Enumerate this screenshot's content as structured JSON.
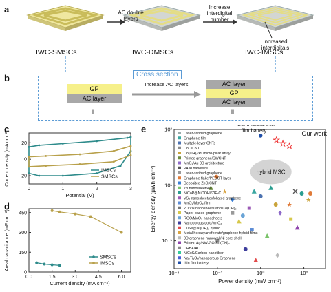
{
  "panels": {
    "a": "a",
    "b": "b",
    "c": "c",
    "d": "d",
    "e": "e"
  },
  "panel_a": {
    "devices": [
      "IWC-SMSCs",
      "IWC-DMSCs",
      "IWC-IMSCs"
    ],
    "arrow1": "AC double layers",
    "arrow2": "Increase interdigital number",
    "callout": "Increased interdigitals"
  },
  "panel_b": {
    "title": "Cross section",
    "left_layers": [
      "GP",
      "AC layer"
    ],
    "arrow": "Increase AC layers",
    "right_layers": [
      "AC layer",
      "GP",
      "AC layer"
    ],
    "roman": [
      "i",
      "ii"
    ]
  },
  "colors": {
    "gp": "#f6f08a",
    "ac": "#a8a8a8",
    "dash": "#5b9bd5",
    "imsc": "#2e8b8b",
    "smsc": "#b8a04a"
  },
  "chart_data": [
    {
      "id": "c",
      "type": "line",
      "xlabel": "Potential (V)",
      "ylabel": "Current density (mA cm⁻²)",
      "xlim": [
        0,
        3
      ],
      "ylim": [
        -30,
        32
      ],
      "xticks": [
        0,
        1,
        2,
        3
      ],
      "yticks": [
        -20,
        0,
        20
      ],
      "legend": [
        "IMSCs",
        "SMSCs"
      ],
      "series": [
        {
          "name": "IMSCs",
          "color": "#2e8b8b",
          "upper": [
            [
              0,
              15
            ],
            [
              0.3,
              17
            ],
            [
              1,
              19
            ],
            [
              2,
              22
            ],
            [
              2.9,
              26
            ],
            [
              3,
              27
            ]
          ],
          "lower": [
            [
              3,
              10
            ],
            [
              2.7,
              -8
            ],
            [
              2,
              -17
            ],
            [
              1,
              -20
            ],
            [
              0.3,
              -20
            ],
            [
              0,
              -17
            ]
          ]
        },
        {
          "name": "SMSCs",
          "color": "#b8a04a",
          "upper": [
            [
              0,
              3
            ],
            [
              0.5,
              4
            ],
            [
              1.5,
              6
            ],
            [
              2.5,
              10
            ],
            [
              3,
              16
            ]
          ],
          "lower": [
            [
              3,
              5
            ],
            [
              2.5,
              -3
            ],
            [
              1.5,
              -6
            ],
            [
              0.5,
              -8
            ],
            [
              0,
              -9
            ]
          ]
        }
      ]
    },
    {
      "id": "d",
      "type": "line",
      "xlabel": "Current density (mA cm⁻²)",
      "ylabel": "Areal capacitance (mF cm⁻²)",
      "xlim": [
        0,
        6.6
      ],
      "ylim": [
        0,
        480
      ],
      "xticks": [
        0,
        1.5,
        3,
        4.5,
        6
      ],
      "xticklabels": [
        "0.0",
        "1.5",
        "3.0",
        "4.5",
        "6.0"
      ],
      "yticks": [
        0,
        150,
        300,
        450
      ],
      "legend": [
        "SMSCs",
        "IMSCs"
      ],
      "series": [
        {
          "name": "SMSCs",
          "color": "#2e8b8b",
          "x": [
            0.5,
            1,
            1.5,
            2
          ],
          "values": [
            70,
            60,
            55,
            50
          ]
        },
        {
          "name": "IMSCs",
          "color": "#b8a04a",
          "x": [
            1.5,
            2,
            3,
            4,
            6
          ],
          "values": [
            465,
            455,
            440,
            420,
            300
          ]
        }
      ]
    },
    {
      "id": "e",
      "type": "scatter",
      "xlabel": "Power density (mW cm⁻²)",
      "ylabel": "Energy density (μWh cm⁻²)",
      "xscale": "log",
      "yscale": "log",
      "xlim": [
        0.0001,
        1000
      ],
      "ylim": [
        0.01,
        1000
      ],
      "xticklabels": [
        "10⁻⁴",
        "10⁻²",
        "10⁰",
        "10²"
      ],
      "yticklabels": [
        "10⁻¹",
        "10¹",
        "10³"
      ],
      "annotations": [
        "Commercial thin film battery",
        "Our work",
        "hybrid MSC"
      ],
      "legend": [
        "Laser-scribed graphene",
        "Graphene film",
        "Multiple-layer CNTs",
        "CoO/CNT",
        "Co(OH)₂/PI micro-pillar array",
        "Printed graphene/SWCNT",
        "MnO₂/Au 3D architecture",
        "PANI nanowire",
        "Laser-scribed graphene",
        "Graphene flake/PEDOT layer",
        "Deposited ZnO/CNT",
        "Zn nanosheet/AC",
        "NiCoP@NiOOH//ZIF-C",
        "VS₂ nanosheet/exfoliated graphene",
        "MnO₂/MoO₃ film",
        "2D VN nanosheets and Co(OH)₂",
        "Paper-based graphene",
        "RGO/MoO₃ nanosheets",
        "Nanoporous gold/MnO₂",
        "CuSe@Ni(OH)₂ hybrid",
        "Metal hexacyanoferrate/graphene hybrid films",
        "3D graphene nanowall/Ni core shell",
        "Printed Ag/NW-GO-Ru(OH)₃",
        "DHBA/AC",
        "NiCoS/Carbon nanofiber",
        "Na₂Ti₃O₇/nanoporous Graphene",
        "thin film battery"
      ],
      "legend_colors": [
        "#9aa",
        "#3aa7a1",
        "#4c72b0",
        "#8a8a8a",
        "#c9a33a",
        "#6d8b3f",
        "#8e6ac9",
        "#555",
        "#999",
        "#e07b39",
        "#3a7fd5",
        "#7ac36a",
        "#2a9d8f",
        "#9b59b6",
        "#5b8bd5",
        "#777",
        "#d6c84a",
        "#6aa4d6",
        "#3d3d9c",
        "#e24a4a",
        "#d9a441",
        "#b9b9b9",
        "#8e44ad",
        "#888",
        "#3c9",
        "#4c5fd5",
        "#1f4ea8"
      ],
      "points": [
        {
          "x": 0.005,
          "y": 8,
          "c": "#6d8b3f",
          "m": "tri"
        },
        {
          "x": 0.009,
          "y": 20,
          "c": "#e07b39",
          "m": "circ"
        },
        {
          "x": 0.02,
          "y": 6,
          "c": "#d9a441",
          "m": "star"
        },
        {
          "x": 0.05,
          "y": 1,
          "c": "#999",
          "m": "sq"
        },
        {
          "x": 0.05,
          "y": 3,
          "c": "#3a7fd5",
          "m": "dia"
        },
        {
          "x": 0.1,
          "y": 0.5,
          "c": "#d6c84a",
          "m": "tri"
        },
        {
          "x": 0.3,
          "y": 1.5,
          "c": "#9b59b6",
          "m": "sq"
        },
        {
          "x": 0.5,
          "y": 6,
          "c": "#3aa7a1",
          "m": "tri"
        },
        {
          "x": 1,
          "y": 4,
          "c": "#4c72b0",
          "m": "circ"
        },
        {
          "x": 3,
          "y": 8,
          "c": "#2a9d8f",
          "m": "tri"
        },
        {
          "x": 5,
          "y": 2,
          "c": "#c9a33a",
          "m": "circ"
        },
        {
          "x": 8,
          "y": 1,
          "c": "#8e6ac9",
          "m": "dia"
        },
        {
          "x": 20,
          "y": 2,
          "c": "#e07b39",
          "m": "star"
        },
        {
          "x": 25,
          "y": 0.6,
          "c": "#d6c84a",
          "m": "sq"
        },
        {
          "x": 40,
          "y": 6,
          "c": "#555",
          "m": "x"
        },
        {
          "x": 50,
          "y": 0.3,
          "c": "#8e44ad",
          "m": "tri"
        },
        {
          "x": 80,
          "y": 5,
          "c": "#2a9d8f",
          "m": "circ"
        },
        {
          "x": 200,
          "y": 5,
          "c": "#e07b39",
          "m": "circ"
        },
        {
          "x": 150,
          "y": 3,
          "c": "#c9a33a",
          "m": "star"
        },
        {
          "x": 0.4,
          "y": 0.25,
          "c": "#5b8bd5",
          "m": "sq"
        },
        {
          "x": 2,
          "y": 0.15,
          "c": "#7ac36a",
          "m": "tri"
        },
        {
          "x": 0.2,
          "y": 0.05,
          "c": "#3d3d9c",
          "m": "circ"
        },
        {
          "x": 0.6,
          "y": 0.02,
          "c": "#e24a4a",
          "m": "tri"
        },
        {
          "x": 6,
          "y": 0.03,
          "c": "#b9b9b9",
          "m": "dia"
        },
        {
          "x": 0.01,
          "y": 0.1,
          "c": "#888",
          "m": "sq"
        },
        {
          "x": 0.15,
          "y": 0.8,
          "c": "#6aa4d6",
          "m": "circ"
        }
      ],
      "ourwork": [
        {
          "x": 5,
          "y": 400
        },
        {
          "x": 10,
          "y": 300
        },
        {
          "x": 20,
          "y": 250
        }
      ]
    }
  ]
}
